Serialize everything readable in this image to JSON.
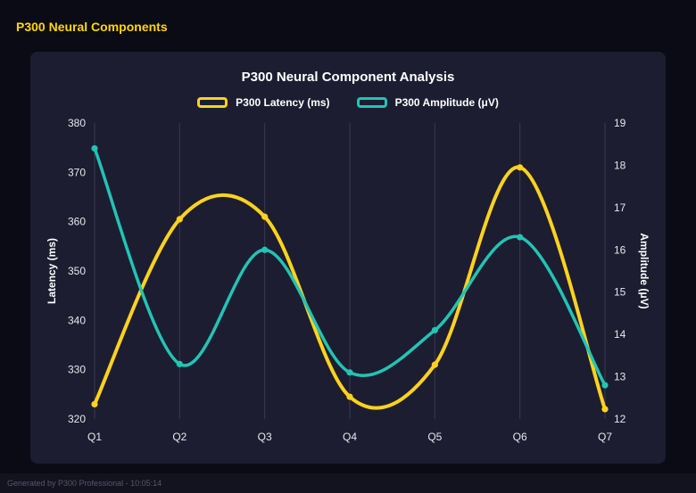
{
  "window": {
    "header_title": "P300 Neural Components",
    "footer_text": "Generated by P300 Professional - 10:05:14"
  },
  "colors": {
    "background": "#0b0b15",
    "card": "#1d1d31",
    "header_text": "#ffd700",
    "latency": "#ffd21e",
    "amplitude": "#22c4b4",
    "grid": "rgba(255,255,255,0.13)",
    "tick_text": "#e8e8ee",
    "axis_label_text": "#ffffff"
  },
  "chart_data": {
    "type": "line",
    "title": "P300 Neural Component Analysis",
    "categories": [
      "Q1",
      "Q2",
      "Q3",
      "Q4",
      "Q5",
      "Q6",
      "Q7"
    ],
    "series": [
      {
        "name": "P300 Latency (ms)",
        "axis": "left",
        "color": "#ffd21e",
        "values": [
          323,
          360.5,
          361,
          324.5,
          331,
          371,
          322
        ]
      },
      {
        "name": "P300 Amplitude (μV)",
        "axis": "right",
        "color": "#22c4b4",
        "values": [
          18.4,
          13.3,
          16.0,
          13.1,
          14.1,
          16.3,
          12.8
        ]
      }
    ],
    "left_axis": {
      "label": "Latency (ms)",
      "min": 320,
      "max": 380,
      "ticks": [
        320,
        330,
        340,
        350,
        360,
        370,
        380
      ]
    },
    "right_axis": {
      "label": "Amplitude (μV)",
      "min": 12,
      "max": 19,
      "ticks": [
        12,
        13,
        14,
        15,
        16,
        17,
        18,
        19
      ]
    },
    "legend_position": "top",
    "grid": "vertical"
  }
}
